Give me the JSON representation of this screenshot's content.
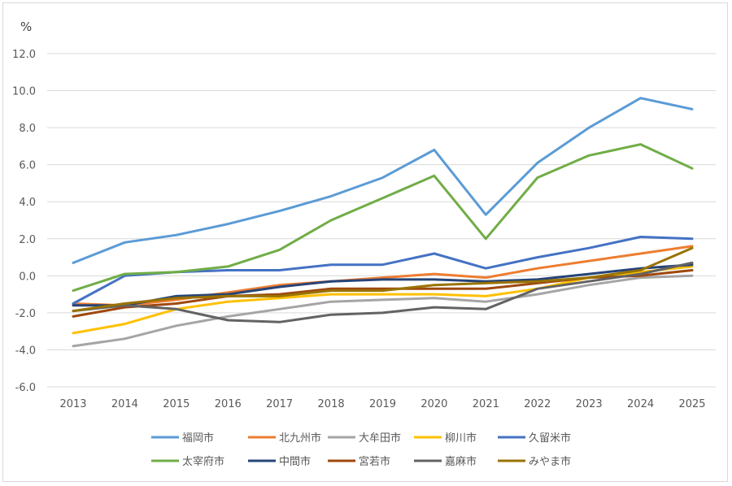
{
  "chart_data": {
    "type": "line",
    "title": "",
    "xlabel": "",
    "ylabel": "%",
    "ylim": [
      -6,
      12
    ],
    "yticks": [
      -6,
      -4,
      -2,
      0,
      2,
      4,
      6,
      8,
      10,
      12
    ],
    "ytick_labels": [
      "-6.0",
      "-4.0",
      "-2.0",
      "0.0",
      "2.0",
      "4.0",
      "6.0",
      "8.0",
      "10.0",
      "12.0"
    ],
    "grid": "horizontal",
    "legend_position": "bottom",
    "categories": [
      "2013",
      "2014",
      "2015",
      "2016",
      "2017",
      "2018",
      "2019",
      "2020",
      "2021",
      "2022",
      "2023",
      "2024",
      "2025"
    ],
    "series": [
      {
        "name": "福岡市",
        "color": "#5B9BD5",
        "values": [
          0.7,
          1.8,
          2.2,
          2.8,
          3.5,
          4.3,
          5.3,
          6.8,
          3.3,
          6.1,
          8.0,
          9.6,
          9.0
        ]
      },
      {
        "name": "北九州市",
        "color": "#ED7D31",
        "values": [
          -1.5,
          -1.6,
          -1.3,
          -0.9,
          -0.5,
          -0.3,
          -0.1,
          0.1,
          -0.1,
          0.4,
          0.8,
          1.2,
          1.6
        ]
      },
      {
        "name": "大牟田市",
        "color": "#A5A5A5",
        "values": [
          -3.8,
          -3.4,
          -2.7,
          -2.2,
          -1.8,
          -1.4,
          -1.3,
          -1.2,
          -1.4,
          -1.0,
          -0.5,
          -0.1,
          0.0
        ]
      },
      {
        "name": "柳川市",
        "color": "#FFC000",
        "values": [
          -3.1,
          -2.6,
          -1.8,
          -1.4,
          -1.2,
          -1.0,
          -1.0,
          -1.0,
          -1.1,
          -0.7,
          -0.1,
          0.2,
          0.5
        ]
      },
      {
        "name": "久留米市",
        "color": "#4472C4",
        "values": [
          -1.5,
          0.0,
          0.2,
          0.3,
          0.3,
          0.6,
          0.6,
          1.2,
          0.4,
          1.0,
          1.5,
          2.1,
          2.0
        ]
      },
      {
        "name": "太宰府市",
        "color": "#70AD47",
        "values": [
          -0.8,
          0.1,
          0.2,
          0.5,
          1.4,
          3.0,
          4.2,
          5.4,
          2.0,
          5.3,
          6.5,
          7.1,
          5.8
        ]
      },
      {
        "name": "中間市",
        "color": "#264478",
        "values": [
          -1.6,
          -1.6,
          -1.1,
          -1.0,
          -0.6,
          -0.3,
          -0.2,
          -0.2,
          -0.3,
          -0.2,
          0.1,
          0.4,
          0.6
        ]
      },
      {
        "name": "宮若市",
        "color": "#9E480E",
        "values": [
          -2.2,
          -1.7,
          -1.5,
          -1.1,
          -1.0,
          -0.7,
          -0.7,
          -0.7,
          -0.7,
          -0.4,
          -0.1,
          0.0,
          0.3
        ]
      },
      {
        "name": "嘉麻市",
        "color": "#636363",
        "values": [
          -1.9,
          -1.6,
          -1.8,
          -2.4,
          -2.5,
          -2.1,
          -2.0,
          -1.7,
          -1.8,
          -0.7,
          -0.3,
          0.1,
          0.7
        ]
      },
      {
        "name": "みやま市",
        "color": "#997300",
        "values": [
          -1.9,
          -1.5,
          -1.2,
          -1.1,
          -1.1,
          -0.8,
          -0.8,
          -0.5,
          -0.4,
          -0.3,
          -0.1,
          0.3,
          1.5
        ]
      }
    ]
  }
}
